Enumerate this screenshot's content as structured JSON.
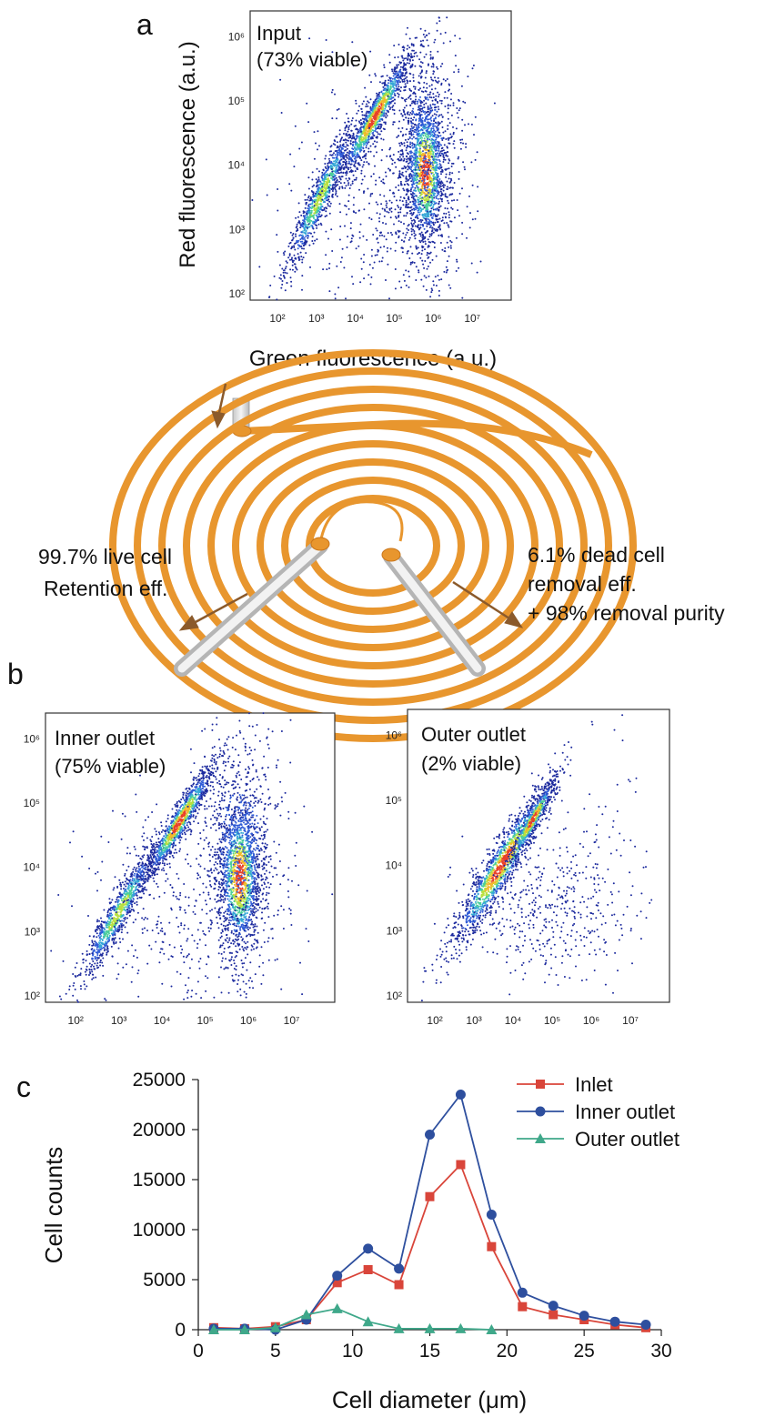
{
  "panels": {
    "a": "a",
    "b": "b",
    "c": "c"
  },
  "flow_plots": [
    {
      "id": "input",
      "label_line1": "Input",
      "label_line2": "(73% viable)",
      "xlabel": "Green fluorescence (a.u.)",
      "ylabel": "Red fluorescence (a.u.)"
    },
    {
      "id": "inner",
      "label_line1": "Inner outlet",
      "label_line2": "(75% viable)",
      "xlabel": "",
      "ylabel": ""
    },
    {
      "id": "outer",
      "label_line1": "Outer outlet",
      "label_line2": "(2% viable)",
      "xlabel": "",
      "ylabel": ""
    }
  ],
  "flow_x_ticks": [
    "10²",
    "10³",
    "10⁴",
    "10⁵",
    "10⁶",
    "10⁷"
  ],
  "flow_y_ticks": [
    "10²",
    "10³",
    "10⁴",
    "10⁵",
    "10⁶"
  ],
  "spiral": {
    "left_line1": "99.7% live cell",
    "left_line2": "Retention eff.",
    "right_line1": "6.1% dead cell",
    "right_line2": "removal eff.",
    "right_line3": "+ 98% removal purity",
    "channel_color": "#e8962e",
    "arrow_color": "#8b5a2b"
  },
  "chart_data": {
    "type": "line",
    "title": "",
    "xlabel": "Cell diameter (μm)",
    "ylabel": "Cell counts",
    "xlim": [
      0,
      30
    ],
    "ylim": [
      0,
      25000
    ],
    "xticks": [
      0,
      5,
      10,
      15,
      20,
      25,
      30
    ],
    "yticks": [
      0,
      5000,
      10000,
      15000,
      20000,
      25000
    ],
    "legend_position": "top-right",
    "series": [
      {
        "name": "Inlet",
        "color": "#d9453a",
        "marker": "square",
        "x": [
          1,
          3,
          5,
          7,
          9,
          11,
          13,
          15,
          17,
          19,
          21,
          23,
          25,
          27,
          29
        ],
        "values": [
          200,
          100,
          300,
          1000,
          4700,
          6000,
          4500,
          13300,
          16500,
          8300,
          2300,
          1500,
          1000,
          500,
          200
        ]
      },
      {
        "name": "Inner outlet",
        "color": "#2e4f9e",
        "marker": "circle",
        "x": [
          1,
          3,
          5,
          7,
          9,
          11,
          13,
          15,
          17,
          19,
          21,
          23,
          25,
          27,
          29
        ],
        "values": [
          100,
          100,
          0,
          1000,
          5400,
          8100,
          6100,
          19500,
          23500,
          11500,
          3700,
          2400,
          1400,
          800,
          500
        ]
      },
      {
        "name": "Outer outlet",
        "color": "#3fa88a",
        "marker": "triangle",
        "x": [
          1,
          3,
          5,
          7,
          9,
          11,
          13,
          15,
          17,
          19
        ],
        "values": [
          0,
          0,
          200,
          1500,
          2100,
          800,
          100,
          100,
          100,
          0
        ]
      }
    ]
  }
}
